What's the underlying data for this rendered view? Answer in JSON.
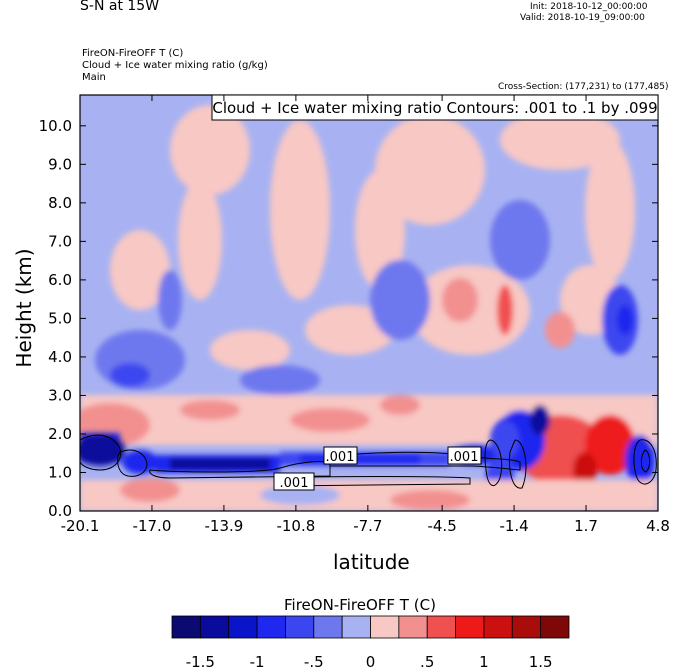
{
  "header": {
    "title": "S-N at 15W",
    "init": "Init: 2018-10-12_00:00:00",
    "valid": "Valid: 2018-10-19_09:00:00",
    "fill_var": "FireON-FireOFF T   (C)",
    "contour_var": "Cloud + Ice water mixing ratio   (g/kg)",
    "domain": "Main",
    "cross_section": "Cross-Section: (177,231) to (177,485)"
  },
  "chart_data": {
    "type": "heatmap",
    "title": "S-N at 15W",
    "xlabel": "latitude",
    "ylabel": "Height (km)",
    "x_ticks": [
      "-20.1",
      "-17.0",
      "-13.9",
      "-10.8",
      "-7.7",
      "-4.5",
      "-1.4",
      "1.7",
      "4.8"
    ],
    "x_tick_values": [
      -20.1,
      -17.0,
      -13.9,
      -10.8,
      -7.7,
      -4.5,
      -1.4,
      1.7,
      4.8
    ],
    "y_ticks": [
      "0.0",
      "1.0",
      "2.0",
      "3.0",
      "4.0",
      "5.0",
      "6.0",
      "7.0",
      "8.0",
      "9.0",
      "10.0"
    ],
    "y_tick_values": [
      0,
      1,
      2,
      3,
      4,
      5,
      6,
      7,
      8,
      9,
      10
    ],
    "xlim": [
      -20.1,
      4.8
    ],
    "ylim": [
      0,
      10.8
    ],
    "contour_title": "Cloud + Ice water mixing ratio Contours: .001 to .1 by .099",
    "contour_labels": [
      {
        "text": ".001",
        "x": -8.7,
        "y": 1.35
      },
      {
        "text": ".001",
        "x": -4.3,
        "y": 1.35
      },
      {
        "text": ".001",
        "x": -11.0,
        "y": 0.8
      }
    ],
    "colorbar": {
      "title": "FireON-FireOFF T  (C)",
      "colors": [
        "#0a0a70",
        "#0a0a9c",
        "#0a14c8",
        "#1e28ee",
        "#3c46f0",
        "#6e78ee",
        "#a8b2f2",
        "#f8c8c4",
        "#f29090",
        "#f05050",
        "#ee1a1a",
        "#cc1010",
        "#aa0c0c",
        "#7e0808"
      ],
      "labels": [
        "-1.5",
        "-1",
        "-.5",
        "0",
        ".5",
        "1",
        "1.5"
      ],
      "label_values": [
        -1.5,
        -1.0,
        -0.5,
        0,
        0.5,
        1.0,
        1.5
      ]
    }
  }
}
